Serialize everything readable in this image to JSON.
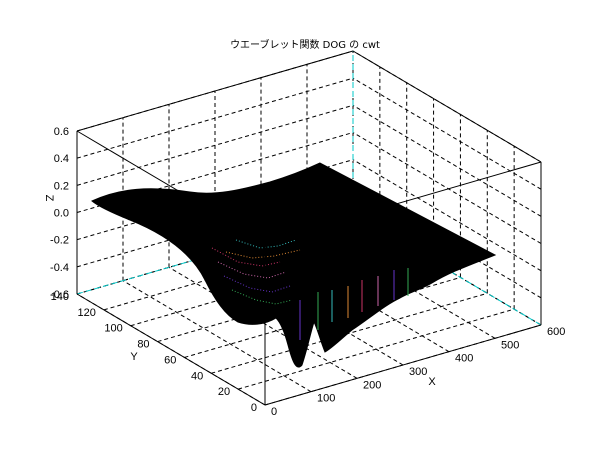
{
  "chart_data": {
    "type": "surface3d",
    "title": "ウエーブレット関数 DOG の cwt",
    "xlabel": "X",
    "ylabel": "Y",
    "zlabel": "Z",
    "x_ticks": [
      "0",
      "100",
      "200",
      "300",
      "400",
      "500",
      "600"
    ],
    "y_ticks": [
      "0",
      "20",
      "40",
      "60",
      "80",
      "100",
      "120",
      "140"
    ],
    "z_ticks": [
      "0.6",
      "0.4",
      "0.2",
      "0.0",
      "-0.2",
      "-0.4",
      "-0.6"
    ],
    "xlim": [
      0,
      600
    ],
    "ylim": [
      0,
      140
    ],
    "zlim": [
      -0.6,
      0.6
    ],
    "grid": true,
    "surface_color": "#000000",
    "mesh_colors": [
      "#cc3366",
      "#cc66aa",
      "#6633cc",
      "#33aa55",
      "#33bbbb",
      "#dd8833"
    ],
    "grid_accent_color": "#00c8c8"
  }
}
